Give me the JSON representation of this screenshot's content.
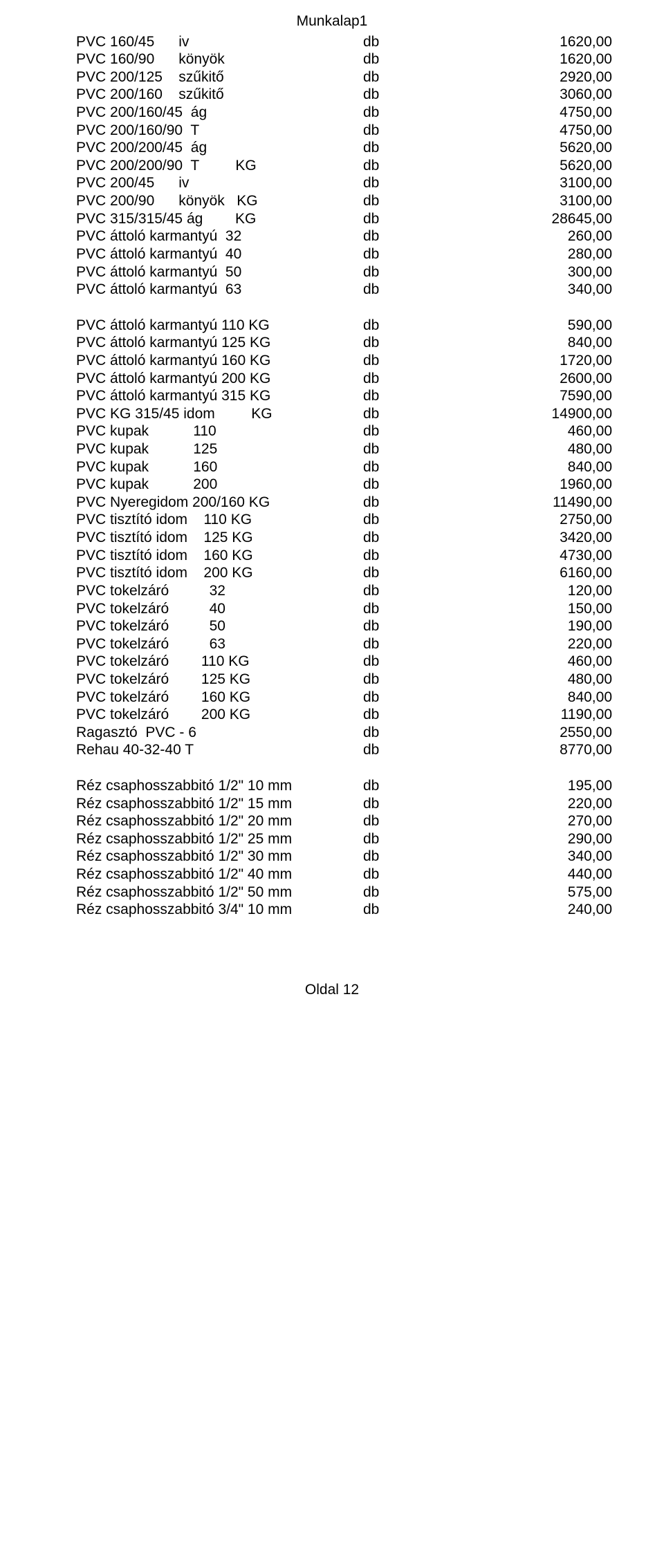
{
  "header": "Munkalap1",
  "footer": "Oldal 12",
  "unit": "db",
  "sections": [
    {
      "rows": [
        {
          "desc": "PVC 160/45      iv",
          "price": "1620,00"
        },
        {
          "desc": "PVC 160/90      könyök",
          "price": "1620,00"
        },
        {
          "desc": "PVC 200/125    szűkitő",
          "price": "2920,00"
        },
        {
          "desc": "PVC 200/160    szűkitő",
          "price": "3060,00"
        },
        {
          "desc": "PVC 200/160/45  ág",
          "price": "4750,00"
        },
        {
          "desc": "PVC 200/160/90  T",
          "price": "4750,00"
        },
        {
          "desc": "PVC 200/200/45  ág",
          "price": "5620,00"
        },
        {
          "desc": "PVC 200/200/90  T         KG",
          "price": "5620,00"
        },
        {
          "desc": "PVC 200/45      iv",
          "price": "3100,00"
        },
        {
          "desc": "PVC 200/90      könyök   KG",
          "price": "3100,00"
        },
        {
          "desc": "PVC 315/315/45 ág        KG",
          "price": "28645,00"
        },
        {
          "desc": "PVC áttoló karmantyú  32",
          "price": "260,00"
        },
        {
          "desc": "PVC áttoló karmantyú  40",
          "price": "280,00"
        },
        {
          "desc": "PVC áttoló karmantyú  50",
          "price": "300,00"
        },
        {
          "desc": "PVC áttoló karmantyú  63",
          "price": "340,00"
        }
      ]
    },
    {
      "rows": [
        {
          "desc": "PVC áttoló karmantyú 110 KG",
          "price": "590,00"
        },
        {
          "desc": "PVC áttoló karmantyú 125 KG",
          "price": "840,00"
        },
        {
          "desc": "PVC áttoló karmantyú 160 KG",
          "price": "1720,00"
        },
        {
          "desc": "PVC áttoló karmantyú 200 KG",
          "price": "2600,00"
        },
        {
          "desc": "PVC áttoló karmantyú 315 KG",
          "price": "7590,00"
        },
        {
          "desc": "PVC KG 315/45 idom         KG",
          "price": "14900,00"
        },
        {
          "desc": "PVC kupak           110",
          "price": "460,00"
        },
        {
          "desc": "PVC kupak           125",
          "price": "480,00"
        },
        {
          "desc": "PVC kupak           160",
          "price": "840,00"
        },
        {
          "desc": "PVC kupak           200",
          "price": "1960,00"
        },
        {
          "desc": "PVC Nyeregidom 200/160 KG",
          "price": "11490,00"
        },
        {
          "desc": "PVC tisztító idom    110 KG",
          "price": "2750,00"
        },
        {
          "desc": "PVC tisztító idom    125 KG",
          "price": "3420,00"
        },
        {
          "desc": "PVC tisztító idom    160 KG",
          "price": "4730,00"
        },
        {
          "desc": "PVC tisztító idom    200 KG",
          "price": "6160,00"
        },
        {
          "desc": "PVC tokelzáró          32",
          "price": "120,00"
        },
        {
          "desc": "PVC tokelzáró          40",
          "price": "150,00"
        },
        {
          "desc": "PVC tokelzáró          50",
          "price": "190,00"
        },
        {
          "desc": "PVC tokelzáró          63",
          "price": "220,00"
        },
        {
          "desc": "PVC tokelzáró        110 KG",
          "price": "460,00"
        },
        {
          "desc": "PVC tokelzáró        125 KG",
          "price": "480,00"
        },
        {
          "desc": "PVC tokelzáró        160 KG",
          "price": "840,00"
        },
        {
          "desc": "PVC tokelzáró        200 KG",
          "price": "1190,00"
        },
        {
          "desc": "Ragasztó  PVC - 6",
          "price": "2550,00"
        },
        {
          "desc": "Rehau 40-32-40 T",
          "price": "8770,00"
        }
      ]
    },
    {
      "rows": [
        {
          "desc": "Réz csaphosszabbitó 1/2\" 10 mm",
          "price": "195,00"
        },
        {
          "desc": "Réz csaphosszabbitó 1/2\" 15 mm",
          "price": "220,00"
        },
        {
          "desc": "Réz csaphosszabbitó 1/2\" 20 mm",
          "price": "270,00"
        },
        {
          "desc": "Réz csaphosszabbitó 1/2\" 25 mm",
          "price": "290,00"
        },
        {
          "desc": "Réz csaphosszabbitó 1/2\" 30 mm",
          "price": "340,00"
        },
        {
          "desc": "Réz csaphosszabbitó 1/2\" 40 mm",
          "price": "440,00"
        },
        {
          "desc": "Réz csaphosszabbitó 1/2\" 50 mm",
          "price": "575,00"
        },
        {
          "desc": "Réz csaphosszabbitó 3/4\" 10 mm",
          "price": "240,00"
        }
      ]
    }
  ]
}
